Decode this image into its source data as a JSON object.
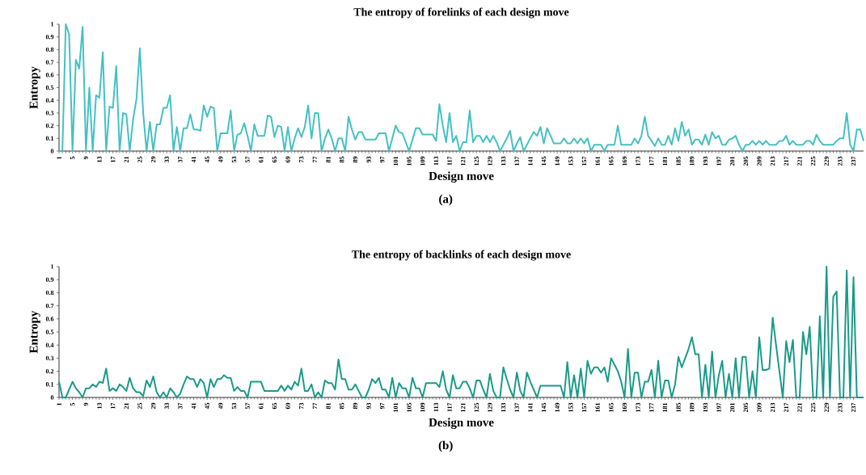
{
  "chart_data": [
    {
      "type": "line",
      "title": "The entropy of forelinks of each design move",
      "xlabel": "Design move",
      "ylabel": "Entropy",
      "annotations": [
        "(a)"
      ],
      "xlim": [
        1,
        240
      ],
      "ylim": [
        0,
        1
      ],
      "xticks": [
        1,
        5,
        9,
        13,
        17,
        21,
        25,
        29,
        33,
        37,
        41,
        45,
        49,
        53,
        57,
        61,
        65,
        69,
        73,
        77,
        81,
        85,
        89,
        93,
        97,
        101,
        105,
        109,
        113,
        117,
        121,
        125,
        129,
        133,
        137,
        141,
        145,
        149,
        153,
        157,
        161,
        165,
        169,
        173,
        177,
        181,
        185,
        189,
        193,
        197,
        201,
        205,
        209,
        213,
        217,
        221,
        225,
        229,
        233,
        237
      ],
      "yticks": [
        0,
        0.1,
        0.2,
        0.3,
        0.4,
        0.5,
        0.6,
        0.7,
        0.8,
        0.9,
        1
      ],
      "x": [
        1,
        2,
        3,
        4,
        5,
        6,
        7,
        8,
        9,
        10,
        11,
        12,
        13,
        14,
        15,
        16,
        17,
        18,
        19,
        20,
        21,
        22,
        23,
        24,
        25,
        26,
        27,
        28,
        29,
        30,
        31,
        32,
        33,
        34,
        35,
        36,
        37,
        38,
        39,
        40,
        41,
        42,
        43,
        44,
        45,
        46,
        47,
        48,
        49,
        50,
        51,
        52,
        53,
        54,
        55,
        56,
        57,
        58,
        59,
        60,
        61,
        62,
        63,
        64,
        65,
        66,
        67,
        68,
        69,
        70,
        71,
        72,
        73,
        74,
        75,
        76,
        77,
        78,
        79,
        80,
        81,
        82,
        83,
        84,
        85,
        86,
        87,
        88,
        89,
        90,
        91,
        92,
        93,
        94,
        95,
        96,
        97,
        98,
        99,
        100,
        101,
        102,
        103,
        104,
        105,
        106,
        107,
        108,
        109,
        110,
        111,
        112,
        113,
        114,
        115,
        116,
        117,
        118,
        119,
        120,
        121,
        122,
        123,
        124,
        125,
        126,
        127,
        128,
        129,
        130,
        131,
        132,
        133,
        134,
        135,
        136,
        137,
        138,
        139,
        140,
        141,
        142,
        143,
        144,
        145,
        146,
        147,
        148,
        149,
        150,
        151,
        152,
        153,
        154,
        155,
        156,
        157,
        158,
        159,
        160,
        161,
        162,
        163,
        164,
        165,
        166,
        167,
        168,
        169,
        170,
        171,
        172,
        173,
        174,
        175,
        176,
        177,
        178,
        179,
        180,
        181,
        182,
        183,
        184,
        185,
        186,
        187,
        188,
        189,
        190,
        191,
        192,
        193,
        194,
        195,
        196,
        197,
        198,
        199,
        200,
        201,
        202,
        203,
        204,
        205,
        206,
        207,
        208,
        209,
        210,
        211,
        212,
        213,
        214,
        215,
        216,
        217,
        218,
        219,
        220,
        221,
        222,
        223,
        224,
        225,
        226,
        227,
        228,
        229,
        230,
        231,
        232,
        233,
        234,
        235,
        236,
        237,
        238,
        239,
        240
      ],
      "series": [
        {
          "color": "#45c0c2",
          "values": [
            0,
            0,
            1.0,
            0.92,
            0,
            0.72,
            0.65,
            0.98,
            0,
            0.5,
            0,
            0.44,
            0.42,
            0.78,
            0,
            0.35,
            0.34,
            0.67,
            0,
            0.3,
            0.29,
            0,
            0.25,
            0.41,
            0.81,
            0.3,
            0,
            0.23,
            0,
            0.21,
            0.21,
            0.34,
            0.34,
            0.44,
            0,
            0.19,
            0,
            0.18,
            0.18,
            0.29,
            0.17,
            0.17,
            0.16,
            0.36,
            0.27,
            0.35,
            0.34,
            0,
            0.14,
            0.14,
            0.14,
            0.32,
            0,
            0.13,
            0.14,
            0.22,
            0.12,
            0,
            0.21,
            0.12,
            0.12,
            0.12,
            0.28,
            0.27,
            0.11,
            0.2,
            0.19,
            0,
            0.19,
            0,
            0.1,
            0.18,
            0.11,
            0.19,
            0.36,
            0.1,
            0.3,
            0.3,
            0,
            0.1,
            0.17,
            0.1,
            0,
            0.1,
            0.1,
            0,
            0.27,
            0.17,
            0.09,
            0.15,
            0.15,
            0.09,
            0.09,
            0.09,
            0.09,
            0.14,
            0.14,
            0.14,
            0,
            0.1,
            0.2,
            0.15,
            0.14,
            0.07,
            0,
            0.09,
            0.18,
            0.18,
            0.13,
            0.13,
            0.13,
            0.13,
            0.08,
            0.37,
            0.2,
            0.07,
            0.3,
            0.07,
            0.12,
            0,
            0.07,
            0.07,
            0.32,
            0.07,
            0.12,
            0.12,
            0.07,
            0.12,
            0.07,
            0.12,
            0.07,
            0,
            0.05,
            0.1,
            0.16,
            0,
            0.06,
            0.11,
            0,
            0.05,
            0.1,
            0.15,
            0.12,
            0.19,
            0.06,
            0.18,
            0.12,
            0.06,
            0.06,
            0.06,
            0.1,
            0.06,
            0.06,
            0.1,
            0.06,
            0.1,
            0.06,
            0.1,
            0,
            0.05,
            0.05,
            0.05,
            0,
            0.05,
            0.05,
            0.05,
            0.2,
            0.05,
            0.05,
            0.05,
            0.05,
            0.1,
            0.06,
            0.12,
            0.27,
            0.12,
            0.08,
            0.04,
            0.1,
            0.05,
            0.05,
            0.12,
            0.05,
            0.18,
            0.08,
            0.23,
            0.12,
            0.17,
            0.05,
            0.09,
            0.09,
            0.05,
            0.13,
            0.05,
            0.15,
            0.1,
            0.12,
            0.05,
            0.05,
            0.09,
            0.1,
            0.12,
            0.05,
            0,
            0.05,
            0.05,
            0.08,
            0.05,
            0.08,
            0.05,
            0.08,
            0.05,
            0.05,
            0.05,
            0.08,
            0.08,
            0.12,
            0.05,
            0.08,
            0.05,
            0.05,
            0.05,
            0.08,
            0.08,
            0.05,
            0.13,
            0.08,
            0.05,
            0.05,
            0.05,
            0.05,
            0.08,
            0.1,
            0.1,
            0.3,
            0.05,
            0,
            0.17,
            0.17,
            0.08
          ]
        }
      ]
    },
    {
      "type": "line",
      "title": "The entropy of backlinks of each design move",
      "xlabel": "Design move",
      "ylabel": "Entropy",
      "annotations": [
        "(b)"
      ],
      "xlim": [
        1,
        240
      ],
      "ylim": [
        0,
        1
      ],
      "xticks": [
        1,
        5,
        9,
        13,
        17,
        21,
        25,
        29,
        33,
        37,
        41,
        45,
        49,
        53,
        57,
        61,
        65,
        69,
        73,
        77,
        81,
        85,
        89,
        93,
        97,
        101,
        105,
        109,
        113,
        117,
        121,
        125,
        129,
        133,
        137,
        141,
        145,
        149,
        153,
        157,
        161,
        165,
        169,
        173,
        177,
        181,
        185,
        189,
        193,
        197,
        201,
        205,
        209,
        213,
        217,
        221,
        225,
        229,
        233,
        237
      ],
      "yticks": [
        0,
        0.1,
        0.2,
        0.3,
        0.4,
        0.5,
        0.6,
        0.7,
        0.8,
        0.9,
        1
      ],
      "x": [
        1,
        2,
        3,
        4,
        5,
        6,
        7,
        8,
        9,
        10,
        11,
        12,
        13,
        14,
        15,
        16,
        17,
        18,
        19,
        20,
        21,
        22,
        23,
        24,
        25,
        26,
        27,
        28,
        29,
        30,
        31,
        32,
        33,
        34,
        35,
        36,
        37,
        38,
        39,
        40,
        41,
        42,
        43,
        44,
        45,
        46,
        47,
        48,
        49,
        50,
        51,
        52,
        53,
        54,
        55,
        56,
        57,
        58,
        59,
        60,
        61,
        62,
        63,
        64,
        65,
        66,
        67,
        68,
        69,
        70,
        71,
        72,
        73,
        74,
        75,
        76,
        77,
        78,
        79,
        80,
        81,
        82,
        83,
        84,
        85,
        86,
        87,
        88,
        89,
        90,
        91,
        92,
        93,
        94,
        95,
        96,
        97,
        98,
        99,
        100,
        101,
        102,
        103,
        104,
        105,
        106,
        107,
        108,
        109,
        110,
        111,
        112,
        113,
        114,
        115,
        116,
        117,
        118,
        119,
        120,
        121,
        122,
        123,
        124,
        125,
        126,
        127,
        128,
        129,
        130,
        131,
        132,
        133,
        134,
        135,
        136,
        137,
        138,
        139,
        140,
        141,
        142,
        143,
        144,
        145,
        146,
        147,
        148,
        149,
        150,
        151,
        152,
        153,
        154,
        155,
        156,
        157,
        158,
        159,
        160,
        161,
        162,
        163,
        164,
        165,
        166,
        167,
        168,
        169,
        170,
        171,
        172,
        173,
        174,
        175,
        176,
        177,
        178,
        179,
        180,
        181,
        182,
        183,
        184,
        185,
        186,
        187,
        188,
        189,
        190,
        191,
        192,
        193,
        194,
        195,
        196,
        197,
        198,
        199,
        200,
        201,
        202,
        203,
        204,
        205,
        206,
        207,
        208,
        209,
        210,
        211,
        212,
        213,
        214,
        215,
        216,
        217,
        218,
        219,
        220,
        221,
        222,
        223,
        224,
        225,
        226,
        227,
        228,
        229,
        230,
        231,
        232,
        233,
        234,
        235,
        236,
        237,
        238,
        239,
        240
      ],
      "series": [
        {
          "color": "#1a9a88",
          "values": [
            0.12,
            0,
            0,
            0.06,
            0.12,
            0.07,
            0.04,
            0,
            0.07,
            0.07,
            0.1,
            0.08,
            0.12,
            0.11,
            0.22,
            0.05,
            0.07,
            0.05,
            0.1,
            0.08,
            0.05,
            0.15,
            0.07,
            0.04,
            0.04,
            0.01,
            0.13,
            0.08,
            0.16,
            0.04,
            0,
            0.04,
            0,
            0.07,
            0.04,
            0,
            0.03,
            0.1,
            0.16,
            0.14,
            0.14,
            0.08,
            0.14,
            0.11,
            0,
            0.14,
            0.08,
            0.14,
            0.14,
            0.17,
            0.15,
            0.15,
            0.05,
            0.08,
            0.05,
            0.05,
            0,
            0.12,
            0.12,
            0.12,
            0.12,
            0.05,
            0.05,
            0.05,
            0.05,
            0.05,
            0.09,
            0.05,
            0.09,
            0.06,
            0.12,
            0.09,
            0.22,
            0.05,
            0.05,
            0.1,
            0,
            0.04,
            0,
            0.13,
            0.11,
            0.11,
            0.06,
            0.29,
            0.14,
            0.14,
            0.06,
            0.06,
            0.1,
            0.05,
            0,
            0,
            0.06,
            0.14,
            0.11,
            0.15,
            0.06,
            0.06,
            0,
            0.15,
            0,
            0.11,
            0.07,
            0.07,
            0,
            0.15,
            0.07,
            0.07,
            0,
            0.11,
            0.11,
            0.11,
            0.11,
            0.08,
            0.2,
            0.06,
            0,
            0.17,
            0.07,
            0.07,
            0.12,
            0.12,
            0.07,
            0,
            0.13,
            0.13,
            0.06,
            0,
            0.18,
            0.05,
            0,
            0,
            0.23,
            0.14,
            0.06,
            0,
            0.19,
            0.05,
            0,
            0.19,
            0.12,
            0.06,
            0,
            0.09,
            0.09,
            0.09,
            0.09,
            0.09,
            0.09,
            0.09,
            0,
            0.27,
            0,
            0.17,
            0,
            0.22,
            0,
            0.28,
            0.18,
            0.23,
            0.23,
            0.19,
            0.23,
            0.12,
            0.3,
            0.25,
            0.2,
            0.12,
            0,
            0.37,
            0,
            0.19,
            0.19,
            0,
            0.12,
            0.12,
            0.21,
            0,
            0.28,
            0,
            0.13,
            0.13,
            0,
            0.1,
            0.31,
            0.23,
            0.3,
            0.37,
            0.46,
            0.33,
            0.33,
            0,
            0.25,
            0,
            0.35,
            0,
            0.17,
            0.28,
            0,
            0.18,
            0,
            0.3,
            0,
            0.31,
            0.31,
            0,
            0.2,
            0,
            0.46,
            0.21,
            0.21,
            0.22,
            0.61,
            0.4,
            0.2,
            0,
            0.43,
            0.27,
            0.44,
            0,
            0,
            0.5,
            0.33,
            0.54,
            0,
            0,
            0.62,
            0,
            1.0,
            0,
            0.77,
            0.81,
            0,
            0,
            0.97,
            0,
            0.92,
            0,
            0,
            0
          ]
        }
      ]
    }
  ]
}
